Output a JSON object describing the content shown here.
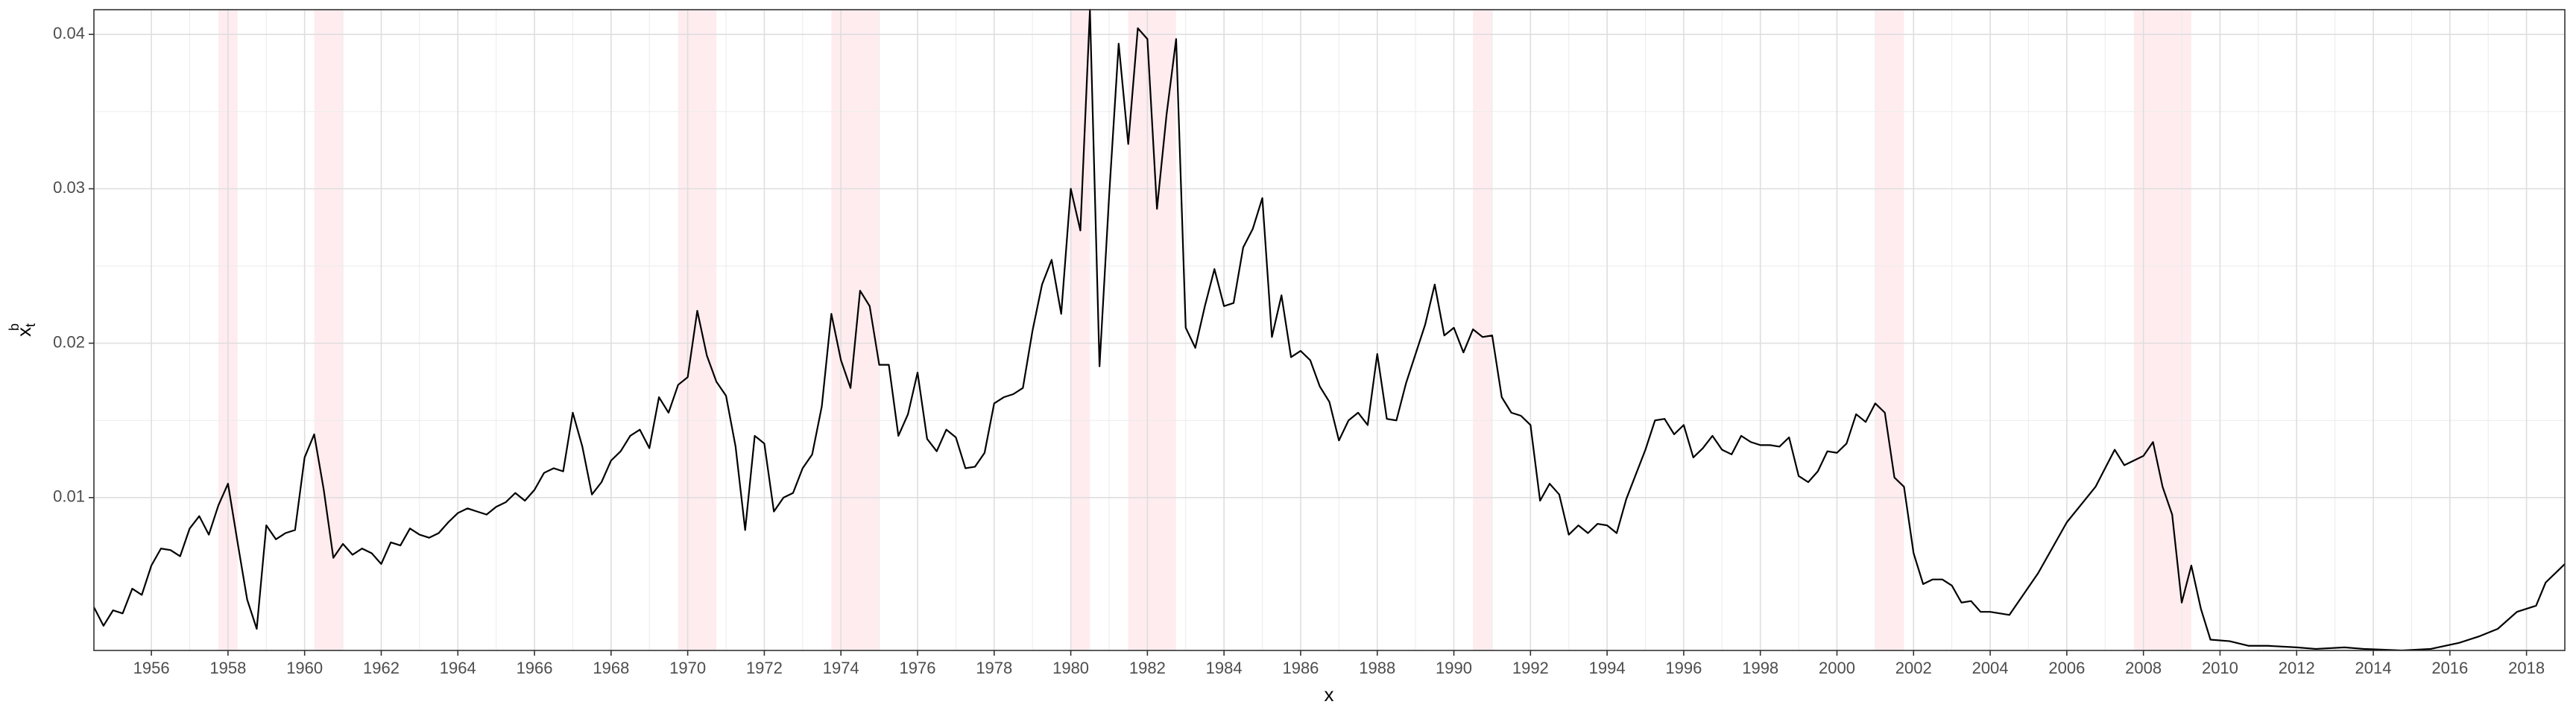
{
  "chart_data": {
    "type": "line",
    "xlabel": "x",
    "ylabel": {
      "base": "x",
      "sub": "t",
      "sup": "b"
    },
    "xlim": [
      1954.5,
      2019.0
    ],
    "ylim": [
      0.0001,
      0.0416
    ],
    "xticks": [
      1956,
      1958,
      1960,
      1962,
      1964,
      1966,
      1968,
      1970,
      1972,
      1974,
      1976,
      1978,
      1980,
      1982,
      1984,
      1986,
      1988,
      1990,
      1992,
      1994,
      1996,
      1998,
      2000,
      2002,
      2004,
      2006,
      2008,
      2010,
      2012,
      2014,
      2016,
      2018
    ],
    "yticks": [
      0.01,
      0.02,
      0.03,
      0.04
    ],
    "grid": true,
    "color": "#000000",
    "shade_color": "#ffc0cb",
    "shaded_regions": [
      [
        1957.75,
        1958.25
      ],
      [
        1960.25,
        1961.0
      ],
      [
        1969.75,
        1970.75
      ],
      [
        1973.75,
        1975.0
      ],
      [
        1980.0,
        1980.5
      ],
      [
        1981.5,
        1982.75
      ],
      [
        1990.5,
        1991.0
      ],
      [
        2001.0,
        2001.75
      ],
      [
        2007.75,
        2009.25
      ]
    ],
    "x": [
      1954.5,
      1954.75,
      1955,
      1955.25,
      1955.5,
      1955.75,
      1956,
      1956.25,
      1956.5,
      1956.75,
      1957,
      1957.25,
      1957.5,
      1957.75,
      1958,
      1958.25,
      1958.5,
      1958.75,
      1959,
      1959.25,
      1959.5,
      1959.75,
      1960,
      1960.25,
      1960.5,
      1960.75,
      1961,
      1961.25,
      1961.5,
      1961.75,
      1962,
      1962.25,
      1962.5,
      1962.75,
      1963,
      1963.25,
      1963.5,
      1963.75,
      1964,
      1964.25,
      1964.5,
      1964.75,
      1965,
      1965.25,
      1965.5,
      1965.75,
      1966,
      1966.25,
      1966.5,
      1966.75,
      1967,
      1967.25,
      1967.5,
      1967.75,
      1968,
      1968.25,
      1968.5,
      1968.75,
      1969,
      1969.25,
      1969.5,
      1969.75,
      1970,
      1970.25,
      1970.5,
      1970.75,
      1971,
      1971.25,
      1971.5,
      1971.75,
      1972,
      1972.25,
      1972.5,
      1972.75,
      1973,
      1973.25,
      1973.5,
      1973.75,
      1974,
      1974.25,
      1974.5,
      1974.75,
      1975,
      1975.25,
      1975.5,
      1975.75,
      1976,
      1976.25,
      1976.5,
      1976.75,
      1977,
      1977.25,
      1977.5,
      1977.75,
      1978,
      1978.25,
      1978.5,
      1978.75,
      1979,
      1979.25,
      1979.5,
      1979.75,
      1980,
      1980.25,
      1980.5,
      1980.75,
      1981,
      1981.25,
      1981.5,
      1981.75,
      1982,
      1982.25,
      1982.5,
      1982.75,
      1983,
      1983.25,
      1983.5,
      1983.75,
      1984,
      1984.25,
      1984.5,
      1984.75,
      1985,
      1985.25,
      1985.5,
      1985.75,
      1986,
      1986.25,
      1986.5,
      1986.75,
      1987,
      1987.25,
      1987.5,
      1987.75,
      1988,
      1988.25,
      1988.5,
      1988.75,
      1989,
      1989.25,
      1989.5,
      1989.75,
      1990,
      1990.25,
      1990.5,
      1990.75,
      1991,
      1991.25,
      1991.5,
      1991.75,
      1992,
      1992.25,
      1992.5,
      1992.75,
      1993,
      1993.25,
      1993.5,
      1993.75,
      1994,
      1994.25,
      1994.5,
      1994.75,
      1995,
      1995.25,
      1995.5,
      1995.75,
      1996,
      1996.25,
      1996.5,
      1996.75,
      1997,
      1997.25,
      1997.5,
      1997.75,
      1998,
      1998.25,
      1998.5,
      1998.75,
      1999,
      1999.25,
      1999.5,
      1999.75,
      2000,
      2000.25,
      2000.5,
      2000.75,
      2001,
      2001.25,
      2001.5,
      2001.75,
      2002,
      2002.25,
      2002.5,
      2002.75,
      2003,
      2003.25,
      2003.5,
      2003.75,
      2004,
      2004.5,
      2005.25,
      2006,
      2006.75,
      2007.25,
      2007.5,
      2008,
      2008.25,
      2008.5,
      2008.75,
      2009,
      2009.25,
      2009.5,
      2009.75,
      2010.25,
      2010.75,
      2011.25,
      2012,
      2012.5,
      2013.25,
      2013.75,
      2014.75,
      2015.5,
      2016.25,
      2016.75,
      2017.25,
      2017.75,
      2018.25,
      2018.5,
      2019
    ],
    "values": [
      0.0029,
      0.0017,
      0.0027,
      0.0025,
      0.0041,
      0.0037,
      0.0056,
      0.0067,
      0.0066,
      0.0062,
      0.008,
      0.0088,
      0.0076,
      0.0095,
      0.0109,
      0.0071,
      0.0034,
      0.0015,
      0.0082,
      0.0073,
      0.0077,
      0.0079,
      0.0126,
      0.0141,
      0.0105,
      0.0061,
      0.007,
      0.0063,
      0.0067,
      0.0064,
      0.0057,
      0.0071,
      0.0069,
      0.008,
      0.0076,
      0.0074,
      0.0077,
      0.0084,
      0.009,
      0.0093,
      0.0091,
      0.0089,
      0.0094,
      0.0097,
      0.0103,
      0.0098,
      0.0105,
      0.0116,
      0.0119,
      0.0117,
      0.0155,
      0.0133,
      0.0102,
      0.011,
      0.0124,
      0.013,
      0.014,
      0.0144,
      0.0132,
      0.0165,
      0.0155,
      0.0173,
      0.0178,
      0.0221,
      0.0192,
      0.0175,
      0.0166,
      0.0133,
      0.0079,
      0.014,
      0.0135,
      0.0091,
      0.01,
      0.0103,
      0.0119,
      0.0128,
      0.0159,
      0.0219,
      0.0189,
      0.0171,
      0.0234,
      0.0224,
      0.0186,
      0.0186,
      0.014,
      0.0154,
      0.0181,
      0.0138,
      0.013,
      0.0144,
      0.0139,
      0.0119,
      0.012,
      0.0129,
      0.0161,
      0.0165,
      0.0167,
      0.0171,
      0.0208,
      0.0238,
      0.0254,
      0.0219,
      0.03,
      0.0273,
      0.0416,
      0.0185,
      0.0295,
      0.0394,
      0.0329,
      0.0404,
      0.0397,
      0.0287,
      0.0348,
      0.0397,
      0.021,
      0.0197,
      0.0224,
      0.0248,
      0.0224,
      0.0226,
      0.0262,
      0.0274,
      0.0294,
      0.0204,
      0.0231,
      0.0191,
      0.0195,
      0.0189,
      0.0172,
      0.0162,
      0.0137,
      0.015,
      0.0155,
      0.0147,
      0.0193,
      0.0151,
      0.015,
      0.0174,
      0.0193,
      0.0212,
      0.0238,
      0.0205,
      0.021,
      0.0194,
      0.0209,
      0.0204,
      0.0205,
      0.0165,
      0.0155,
      0.0153,
      0.0147,
      0.0098,
      0.0109,
      0.0102,
      0.0076,
      0.0082,
      0.0077,
      0.0083,
      0.0082,
      0.0077,
      0.0099,
      0.0115,
      0.0131,
      0.015,
      0.0151,
      0.0141,
      0.0147,
      0.0126,
      0.0132,
      0.014,
      0.0131,
      0.0128,
      0.014,
      0.0136,
      0.0134,
      0.0134,
      0.0133,
      0.0139,
      0.0114,
      0.011,
      0.0117,
      0.013,
      0.0129,
      0.0135,
      0.0154,
      0.0149,
      0.0161,
      0.0155,
      0.0113,
      0.0107,
      0.0064,
      0.0044,
      0.0047,
      0.0047,
      0.0043,
      0.0032,
      0.0033,
      0.0026,
      0.0026,
      0.0024,
      0.0051,
      0.0084,
      0.0107,
      0.0131,
      0.0121,
      0.0127,
      0.0136,
      0.0107,
      0.0089,
      0.0032,
      0.0056,
      0.0028,
      0.0008,
      0.0007,
      0.0004,
      0.0004,
      0.0003,
      0.0002,
      0.0003,
      0.0002,
      0.0001,
      0.0002,
      0.0006,
      0.001,
      0.0015,
      0.0026,
      0.003,
      0.0045,
      0.0057
    ]
  }
}
